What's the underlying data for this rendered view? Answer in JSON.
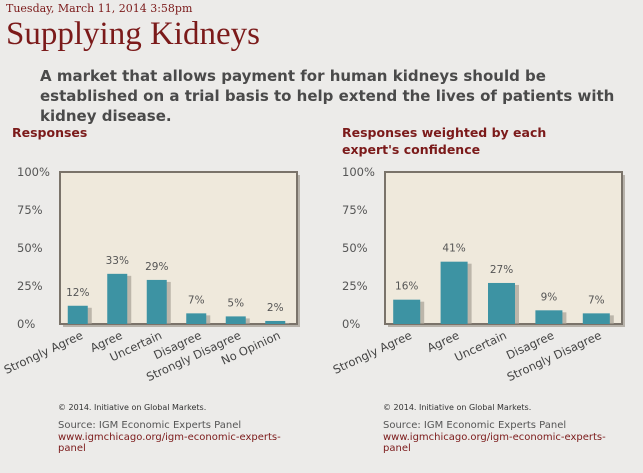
{
  "header": {
    "date": "Tuesday, March 11, 2014 3:58pm",
    "title": "Supplying Kidneys",
    "statement": "A market that allows payment for human kidneys should be established on a trial basis to help extend the lives of patients with kidney disease."
  },
  "colors": {
    "bar": "#3d93a3",
    "plot_bg": "#efe9dc",
    "frame": "#7a736a",
    "accent": "#7b1a1a"
  },
  "chart_data": [
    {
      "type": "bar",
      "title": "Responses",
      "categories": [
        "Strongly Agree",
        "Agree",
        "Uncertain",
        "Disagree",
        "Strongly Disagree",
        "No Opinion"
      ],
      "values": [
        12,
        33,
        29,
        7,
        5,
        2
      ],
      "data_labels": [
        "12%",
        "33%",
        "29%",
        "7%",
        "5%",
        "2%"
      ],
      "ylim": [
        0,
        100
      ],
      "yticks": [
        "0%",
        "25%",
        "50%",
        "75%",
        "100%"
      ],
      "grid": false
    },
    {
      "type": "bar",
      "title": "Responses weighted by each expert's confidence",
      "categories": [
        "Strongly Agree",
        "Agree",
        "Uncertain",
        "Disagree",
        "Strongly Disagree"
      ],
      "values": [
        16,
        41,
        27,
        9,
        7
      ],
      "data_labels": [
        "16%",
        "41%",
        "27%",
        "9%",
        "7%"
      ],
      "ylim": [
        0,
        100
      ],
      "yticks": [
        "0%",
        "25%",
        "50%",
        "75%",
        "100%"
      ],
      "grid": false
    }
  ],
  "footer": {
    "copyright": "© 2014. Initiative on Global Markets.",
    "source": "Source: IGM Economic Experts Panel",
    "link": "www.igmchicago.org/igm-economic-experts-panel"
  }
}
